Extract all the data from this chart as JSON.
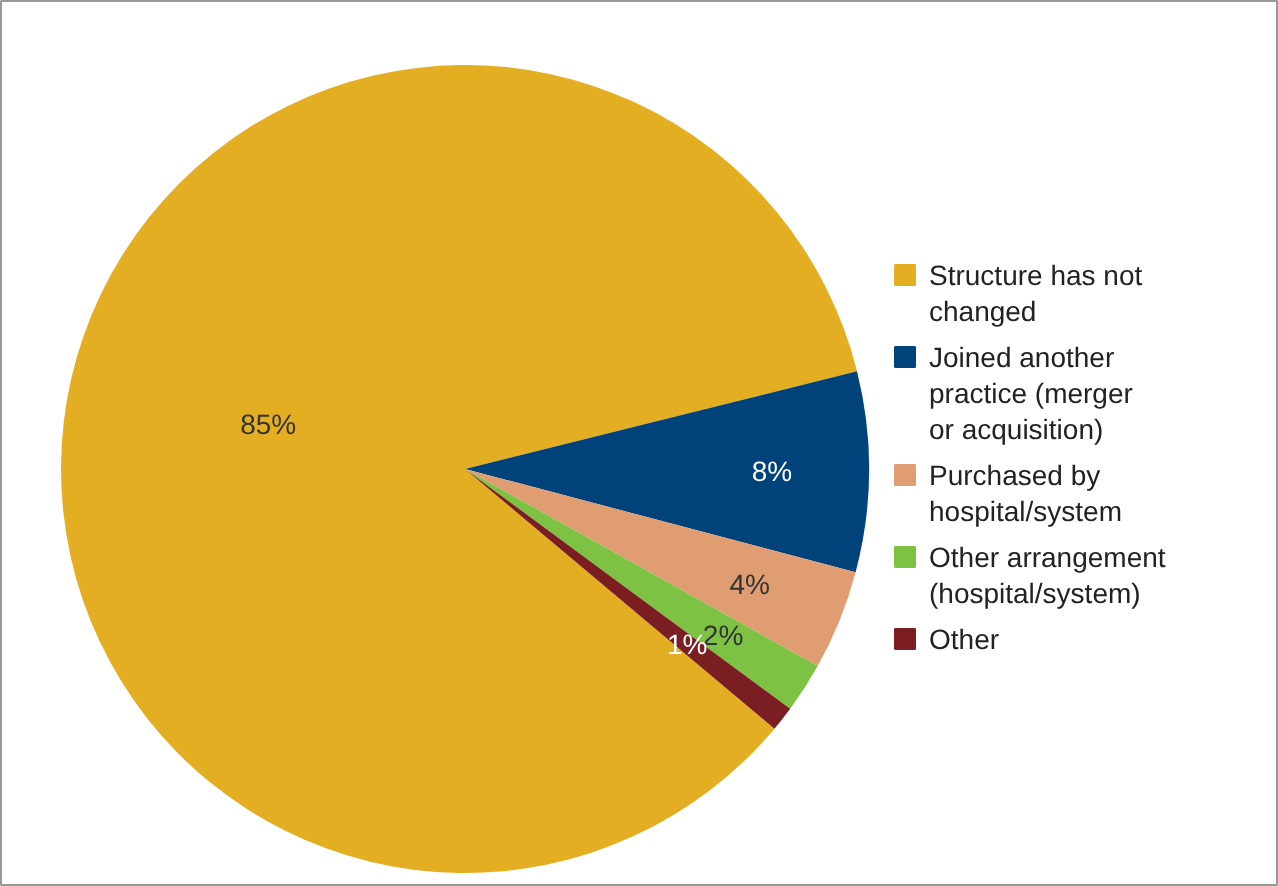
{
  "chart_data": {
    "type": "pie",
    "categories": [
      "Structure has not changed",
      "Joined another practice (merger or acquisition)",
      "Purchased by hospital/system",
      "Other arrangement (hospital/system)",
      "Other"
    ],
    "values": [
      85,
      8,
      4,
      2,
      1
    ],
    "colors": [
      "#e3ae22",
      "#00427a",
      "#e09d72",
      "#7dc243",
      "#7a1e22"
    ],
    "value_labels": [
      "85%",
      "8%",
      "4%",
      "2%",
      "1%"
    ],
    "legend": "right"
  }
}
